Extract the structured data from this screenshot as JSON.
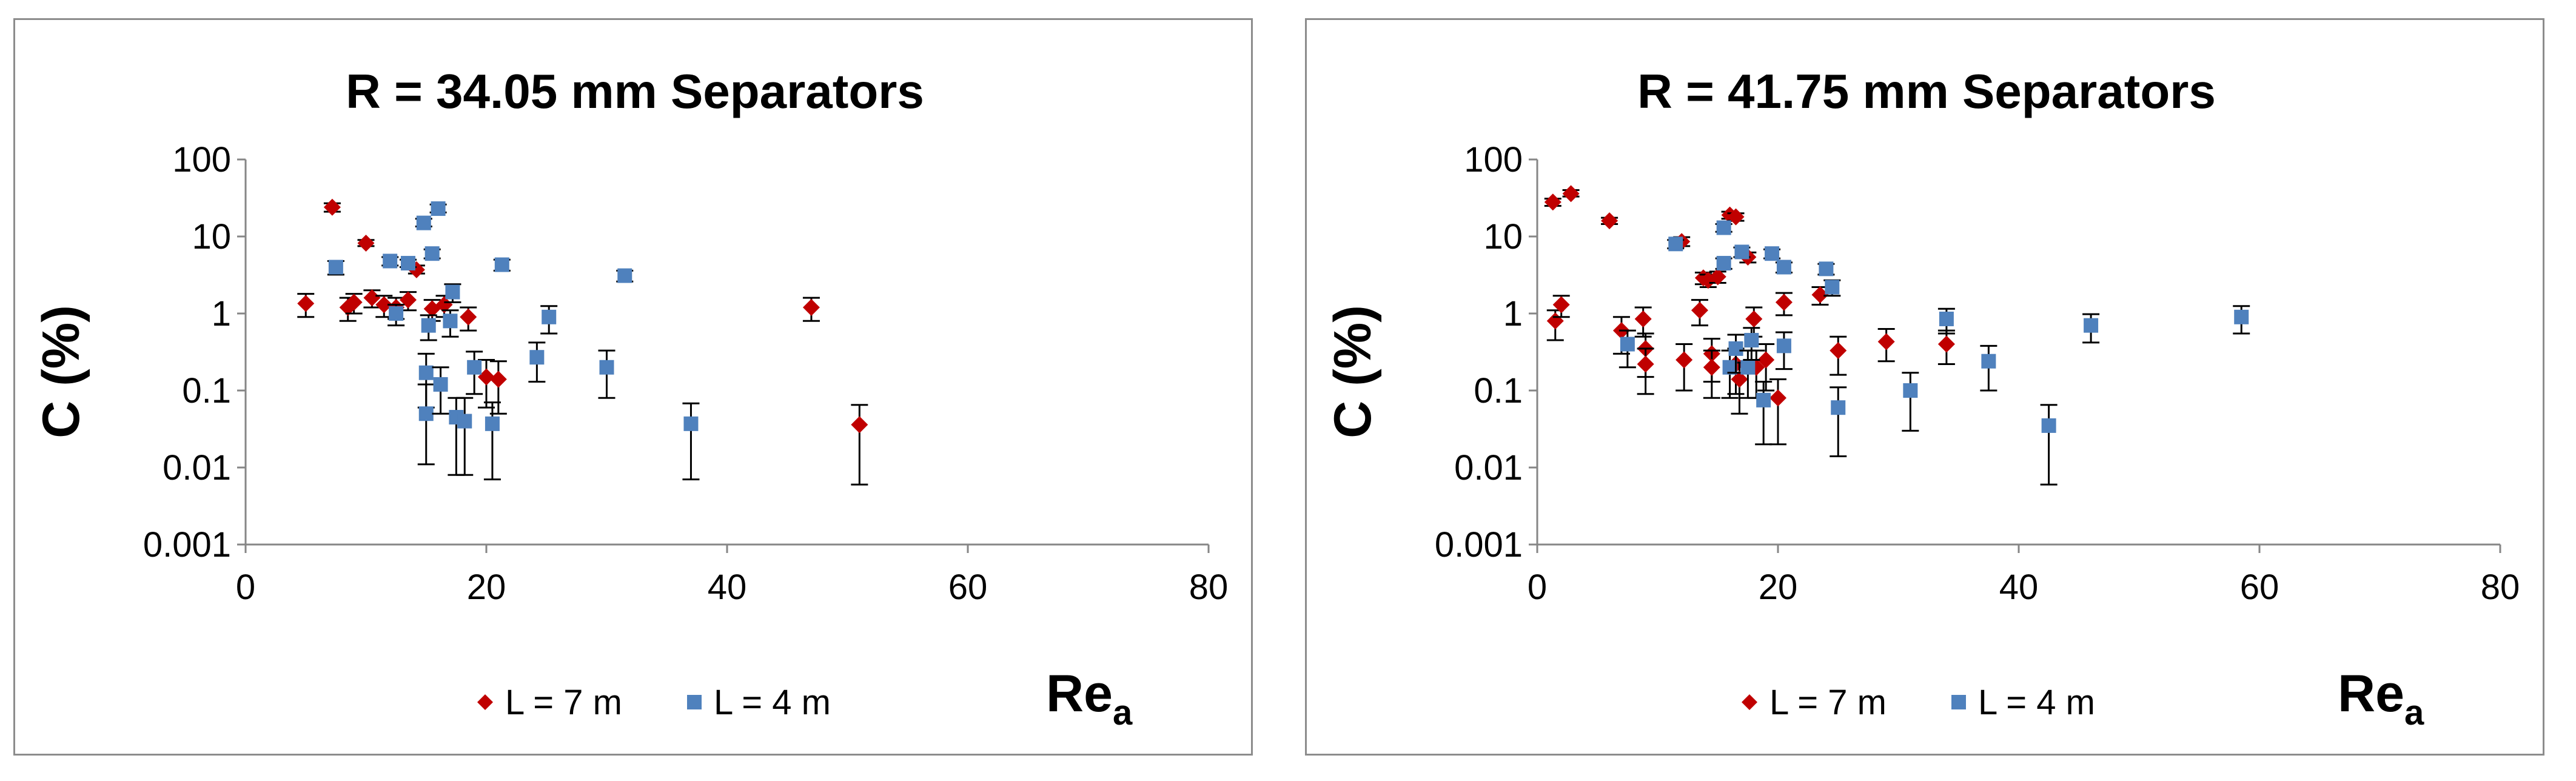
{
  "colors": {
    "series_7m": "#c00000",
    "series_4m": "#4f81bd",
    "axis": "#868686"
  },
  "chart_data": [
    {
      "type": "scatter",
      "title": "R = 34.05 mm Separators",
      "ylabel": "C (%)",
      "xlabel_main": "Re",
      "xlabel_sub": "a",
      "xlim": [
        0,
        80
      ],
      "ylim": [
        0.001,
        100
      ],
      "yscale": "log",
      "grid": false,
      "legend_position": "bottom",
      "x_ticks": [
        "0",
        "20",
        "40",
        "60",
        "80"
      ],
      "y_ticks": [
        "0.001",
        "0.01",
        "0.1",
        "1",
        "10",
        "100"
      ],
      "series": [
        {
          "name": "L = 7 m",
          "marker": "diamond",
          "points": [
            {
              "x": 5,
              "y": 1.35,
              "lo": 0.9,
              "hi": 1.8
            },
            {
              "x": 7.2,
              "y": 24,
              "lo": 21,
              "hi": 27
            },
            {
              "x": 8.5,
              "y": 1.2,
              "lo": 0.8,
              "hi": 1.6
            },
            {
              "x": 9,
              "y": 1.4,
              "lo": 1.0,
              "hi": 1.8
            },
            {
              "x": 10,
              "y": 8.2,
              "lo": 7.5,
              "hi": 9
            },
            {
              "x": 10.5,
              "y": 1.6,
              "lo": 1.2,
              "hi": 2.0
            },
            {
              "x": 11.5,
              "y": 1.3,
              "lo": 0.9,
              "hi": 1.7
            },
            {
              "x": 12.5,
              "y": 1.2,
              "lo": 0.85,
              "hi": 1.6
            },
            {
              "x": 13.5,
              "y": 1.5,
              "lo": 1.1,
              "hi": 1.9
            },
            {
              "x": 14.2,
              "y": 3.7,
              "lo": 3.3,
              "hi": 4.2
            },
            {
              "x": 15.5,
              "y": 1.15,
              "lo": 0.8,
              "hi": 1.5
            },
            {
              "x": 16.5,
              "y": 1.3,
              "lo": 0.9,
              "hi": 1.7
            },
            {
              "x": 18.5,
              "y": 0.9,
              "lo": 0.6,
              "hi": 1.2
            },
            {
              "x": 20,
              "y": 0.15,
              "lo": 0.06,
              "hi": 0.25
            },
            {
              "x": 21,
              "y": 0.14,
              "lo": 0.05,
              "hi": 0.24
            },
            {
              "x": 47,
              "y": 1.2,
              "lo": 0.8,
              "hi": 1.6
            },
            {
              "x": 51,
              "y": 0.036,
              "lo": 0.006,
              "hi": 0.065
            }
          ]
        },
        {
          "name": "L = 4 m",
          "marker": "square",
          "points": [
            {
              "x": 7.5,
              "y": 4.0,
              "lo": 3.2,
              "hi": 4.8
            },
            {
              "x": 12,
              "y": 4.8,
              "lo": 4.2,
              "hi": 5.4
            },
            {
              "x": 12.5,
              "y": 1.0,
              "lo": 0.7,
              "hi": 1.3
            },
            {
              "x": 13.5,
              "y": 4.5,
              "lo": 4.0,
              "hi": 5.0
            },
            {
              "x": 14.8,
              "y": 15,
              "lo": 13.5,
              "hi": 17
            },
            {
              "x": 15.5,
              "y": 6.0,
              "lo": 5.2,
              "hi": 6.8
            },
            {
              "x": 16,
              "y": 23,
              "lo": 20.5,
              "hi": 26
            },
            {
              "x": 15.2,
              "y": 0.7,
              "lo": 0.45,
              "hi": 0.95
            },
            {
              "x": 15,
              "y": 0.17,
              "lo": 0.06,
              "hi": 0.3
            },
            {
              "x": 15,
              "y": 0.05,
              "lo": 0.011,
              "hi": 0.12
            },
            {
              "x": 16.2,
              "y": 0.12,
              "lo": 0.05,
              "hi": 0.2
            },
            {
              "x": 17,
              "y": 0.8,
              "lo": 0.5,
              "hi": 1.1
            },
            {
              "x": 17.2,
              "y": 1.9,
              "lo": 1.4,
              "hi": 2.4
            },
            {
              "x": 17.5,
              "y": 0.045,
              "lo": 0.008,
              "hi": 0.08
            },
            {
              "x": 18.2,
              "y": 0.04,
              "lo": 0.008,
              "hi": 0.08
            },
            {
              "x": 19,
              "y": 0.2,
              "lo": 0.09,
              "hi": 0.32
            },
            {
              "x": 20.5,
              "y": 0.037,
              "lo": 0.007,
              "hi": 0.07
            },
            {
              "x": 21.3,
              "y": 4.3,
              "lo": 3.6,
              "hi": 5.0
            },
            {
              "x": 24.2,
              "y": 0.27,
              "lo": 0.13,
              "hi": 0.42
            },
            {
              "x": 25.2,
              "y": 0.9,
              "lo": 0.55,
              "hi": 1.25
            },
            {
              "x": 30,
              "y": 0.2,
              "lo": 0.08,
              "hi": 0.33
            },
            {
              "x": 31.5,
              "y": 3.1,
              "lo": 2.6,
              "hi": 3.6
            },
            {
              "x": 37,
              "y": 0.037,
              "lo": 0.007,
              "hi": 0.068
            }
          ]
        }
      ]
    },
    {
      "type": "scatter",
      "title": "R = 41.75 mm Separators",
      "ylabel": "C (%)",
      "xlabel_main": "Re",
      "xlabel_sub": "a",
      "xlim": [
        0,
        80
      ],
      "ylim": [
        0.001,
        100
      ],
      "yscale": "log",
      "grid": false,
      "legend_position": "bottom",
      "x_ticks": [
        "0",
        "20",
        "40",
        "60",
        "80"
      ],
      "y_ticks": [
        "0.001",
        "0.01",
        "0.1",
        "1",
        "10",
        "100"
      ],
      "series": [
        {
          "name": "L = 7 m",
          "marker": "diamond",
          "points": [
            {
              "x": 1.3,
              "y": 28,
              "lo": 25,
              "hi": 31
            },
            {
              "x": 1.5,
              "y": 0.8,
              "lo": 0.45,
              "hi": 1.1
            },
            {
              "x": 2,
              "y": 1.3,
              "lo": 0.9,
              "hi": 1.7
            },
            {
              "x": 2.8,
              "y": 36,
              "lo": 33,
              "hi": 40
            },
            {
              "x": 6,
              "y": 16,
              "lo": 14.5,
              "hi": 17.5
            },
            {
              "x": 7,
              "y": 0.6,
              "lo": 0.3,
              "hi": 0.9
            },
            {
              "x": 8.8,
              "y": 0.85,
              "lo": 0.5,
              "hi": 1.2
            },
            {
              "x": 9,
              "y": 0.35,
              "lo": 0.15,
              "hi": 0.55
            },
            {
              "x": 9,
              "y": 0.22,
              "lo": 0.09,
              "hi": 0.35
            },
            {
              "x": 12,
              "y": 8.6,
              "lo": 7.5,
              "hi": 9.8
            },
            {
              "x": 12.2,
              "y": 0.25,
              "lo": 0.1,
              "hi": 0.4
            },
            {
              "x": 13.5,
              "y": 1.1,
              "lo": 0.7,
              "hi": 1.5
            },
            {
              "x": 13.8,
              "y": 2.9,
              "lo": 2.4,
              "hi": 3.4
            },
            {
              "x": 14.2,
              "y": 2.7,
              "lo": 2.2,
              "hi": 3.2
            },
            {
              "x": 14.5,
              "y": 0.3,
              "lo": 0.13,
              "hi": 0.47
            },
            {
              "x": 14.5,
              "y": 0.2,
              "lo": 0.08,
              "hi": 0.33
            },
            {
              "x": 15,
              "y": 3.0,
              "lo": 2.5,
              "hi": 3.5
            },
            {
              "x": 16,
              "y": 19,
              "lo": 17,
              "hi": 21
            },
            {
              "x": 16.5,
              "y": 18,
              "lo": 16,
              "hi": 20
            },
            {
              "x": 16.5,
              "y": 0.22,
              "lo": 0.09,
              "hi": 0.35
            },
            {
              "x": 16.8,
              "y": 0.14,
              "lo": 0.05,
              "hi": 0.23
            },
            {
              "x": 17.5,
              "y": 5.4,
              "lo": 4.6,
              "hi": 6.2
            },
            {
              "x": 18,
              "y": 0.85,
              "lo": 0.5,
              "hi": 1.2
            },
            {
              "x": 18.2,
              "y": 0.2,
              "lo": 0.08,
              "hi": 0.33
            },
            {
              "x": 19,
              "y": 0.25,
              "lo": 0.1,
              "hi": 0.4
            },
            {
              "x": 20,
              "y": 0.08,
              "lo": 0.02,
              "hi": 0.14
            },
            {
              "x": 20.5,
              "y": 1.4,
              "lo": 0.95,
              "hi": 1.85
            },
            {
              "x": 23.5,
              "y": 1.75,
              "lo": 1.3,
              "hi": 2.2
            },
            {
              "x": 25,
              "y": 0.33,
              "lo": 0.16,
              "hi": 0.5
            },
            {
              "x": 29,
              "y": 0.43,
              "lo": 0.24,
              "hi": 0.63
            },
            {
              "x": 34,
              "y": 0.4,
              "lo": 0.22,
              "hi": 0.6
            }
          ]
        },
        {
          "name": "L = 4 m",
          "marker": "square",
          "points": [
            {
              "x": 7.5,
              "y": 0.4,
              "lo": 0.2,
              "hi": 0.6
            },
            {
              "x": 11.5,
              "y": 8.0,
              "lo": 7.0,
              "hi": 9.0
            },
            {
              "x": 15.5,
              "y": 4.5,
              "lo": 3.8,
              "hi": 5.2
            },
            {
              "x": 15.5,
              "y": 13,
              "lo": 11.5,
              "hi": 14.5
            },
            {
              "x": 16,
              "y": 0.2,
              "lo": 0.08,
              "hi": 0.33
            },
            {
              "x": 16.5,
              "y": 0.35,
              "lo": 0.17,
              "hi": 0.53
            },
            {
              "x": 17,
              "y": 6.3,
              "lo": 5.4,
              "hi": 7.2
            },
            {
              "x": 17.5,
              "y": 0.2,
              "lo": 0.08,
              "hi": 0.33
            },
            {
              "x": 17.8,
              "y": 0.45,
              "lo": 0.25,
              "hi": 0.65
            },
            {
              "x": 18.8,
              "y": 0.075,
              "lo": 0.02,
              "hi": 0.13
            },
            {
              "x": 19.5,
              "y": 6.0,
              "lo": 5.2,
              "hi": 6.8
            },
            {
              "x": 20.5,
              "y": 0.38,
              "lo": 0.19,
              "hi": 0.57
            },
            {
              "x": 20.5,
              "y": 4.0,
              "lo": 3.4,
              "hi": 4.6
            },
            {
              "x": 24,
              "y": 3.8,
              "lo": 3.2,
              "hi": 4.4
            },
            {
              "x": 24.5,
              "y": 2.2,
              "lo": 1.7,
              "hi": 2.7
            },
            {
              "x": 25,
              "y": 0.06,
              "lo": 0.014,
              "hi": 0.11
            },
            {
              "x": 31,
              "y": 0.1,
              "lo": 0.03,
              "hi": 0.17
            },
            {
              "x": 34,
              "y": 0.85,
              "lo": 0.55,
              "hi": 1.15
            },
            {
              "x": 37.5,
              "y": 0.24,
              "lo": 0.1,
              "hi": 0.38
            },
            {
              "x": 42.5,
              "y": 0.035,
              "lo": 0.006,
              "hi": 0.065
            },
            {
              "x": 46,
              "y": 0.7,
              "lo": 0.42,
              "hi": 0.98
            },
            {
              "x": 58.5,
              "y": 0.9,
              "lo": 0.55,
              "hi": 1.25
            }
          ]
        }
      ]
    }
  ]
}
